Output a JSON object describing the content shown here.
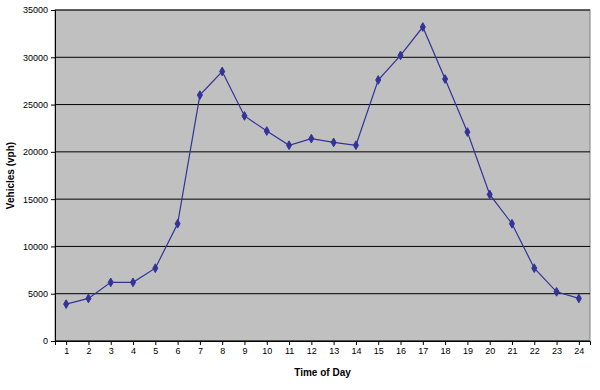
{
  "chart_data": {
    "type": "line",
    "x_label": "Time of Day",
    "y_label": "Vehicles (vph)",
    "categories": [
      "1",
      "2",
      "3",
      "4",
      "5",
      "6",
      "7",
      "8",
      "9",
      "10",
      "11",
      "12",
      "13",
      "14",
      "15",
      "16",
      "17",
      "18",
      "19",
      "20",
      "21",
      "22",
      "23",
      "24"
    ],
    "values": [
      3900,
      4500,
      6200,
      6200,
      7700,
      12400,
      26000,
      28500,
      23800,
      22200,
      20700,
      21400,
      21000,
      20700,
      27600,
      30200,
      33200,
      27700,
      22100,
      15500,
      12400,
      7700,
      5200,
      4500
    ],
    "color": "#333399",
    "marker": "diamond",
    "ylim": [
      0,
      35000
    ],
    "yticks": [
      0,
      5000,
      10000,
      15000,
      20000,
      25000,
      30000,
      35000
    ],
    "grid": true
  }
}
